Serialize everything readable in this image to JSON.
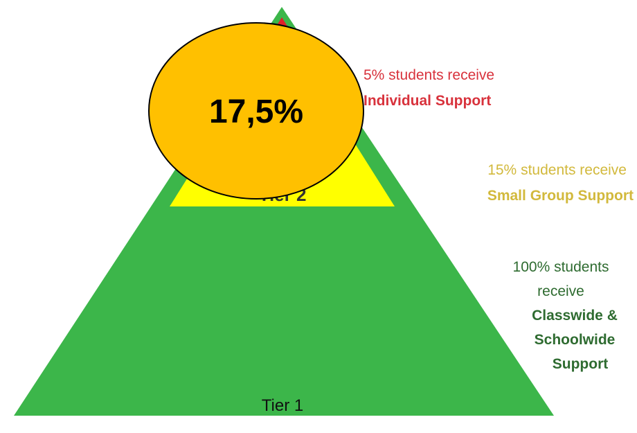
{
  "badge": "17,5%",
  "tiers": [
    {
      "label": "Tier 1",
      "description": [
        "100% students",
        "receive",
        "Classwide &",
        "Schoolwide",
        "Support"
      ]
    },
    {
      "label": "Tier 2",
      "description": [
        "15% students receive",
        "Small Group Support"
      ]
    },
    {
      "description": [
        "5% students receive",
        "Individual Support"
      ]
    }
  ]
}
